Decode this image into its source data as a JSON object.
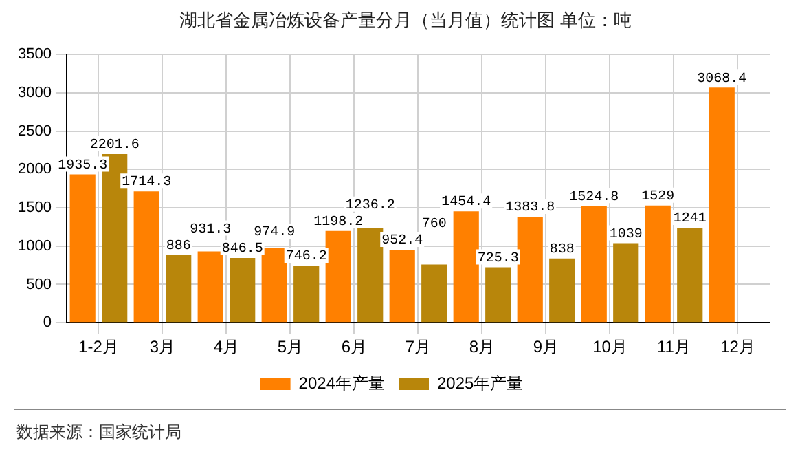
{
  "chart_data": {
    "type": "bar",
    "title": "湖北省金属冶炼设备产量分月（当月值）统计图 单位：吨",
    "categories": [
      "1-2月",
      "3月",
      "4月",
      "5月",
      "6月",
      "7月",
      "8月",
      "9月",
      "10月",
      "11月",
      "12月"
    ],
    "series": [
      {
        "name": "2024年产量",
        "color": "#ff8000",
        "values": [
          1935.3,
          1714.3,
          931.3,
          974.9,
          1198.2,
          952.4,
          1454.4,
          1383.8,
          1524.8,
          1529,
          3068.4
        ]
      },
      {
        "name": "2025年产量",
        "color": "#b8860b",
        "values": [
          2201.6,
          886,
          846.5,
          746.2,
          1236.2,
          760,
          725.3,
          838,
          1039,
          1241,
          null
        ]
      }
    ],
    "ylim": [
      0,
      3500
    ],
    "yticks": [
      0,
      500,
      1000,
      1500,
      2000,
      2500,
      3000,
      3500
    ],
    "grid": true,
    "legend": "bottom",
    "data_labels": true,
    "annotations": [
      "数据来源：国家统计局"
    ]
  }
}
